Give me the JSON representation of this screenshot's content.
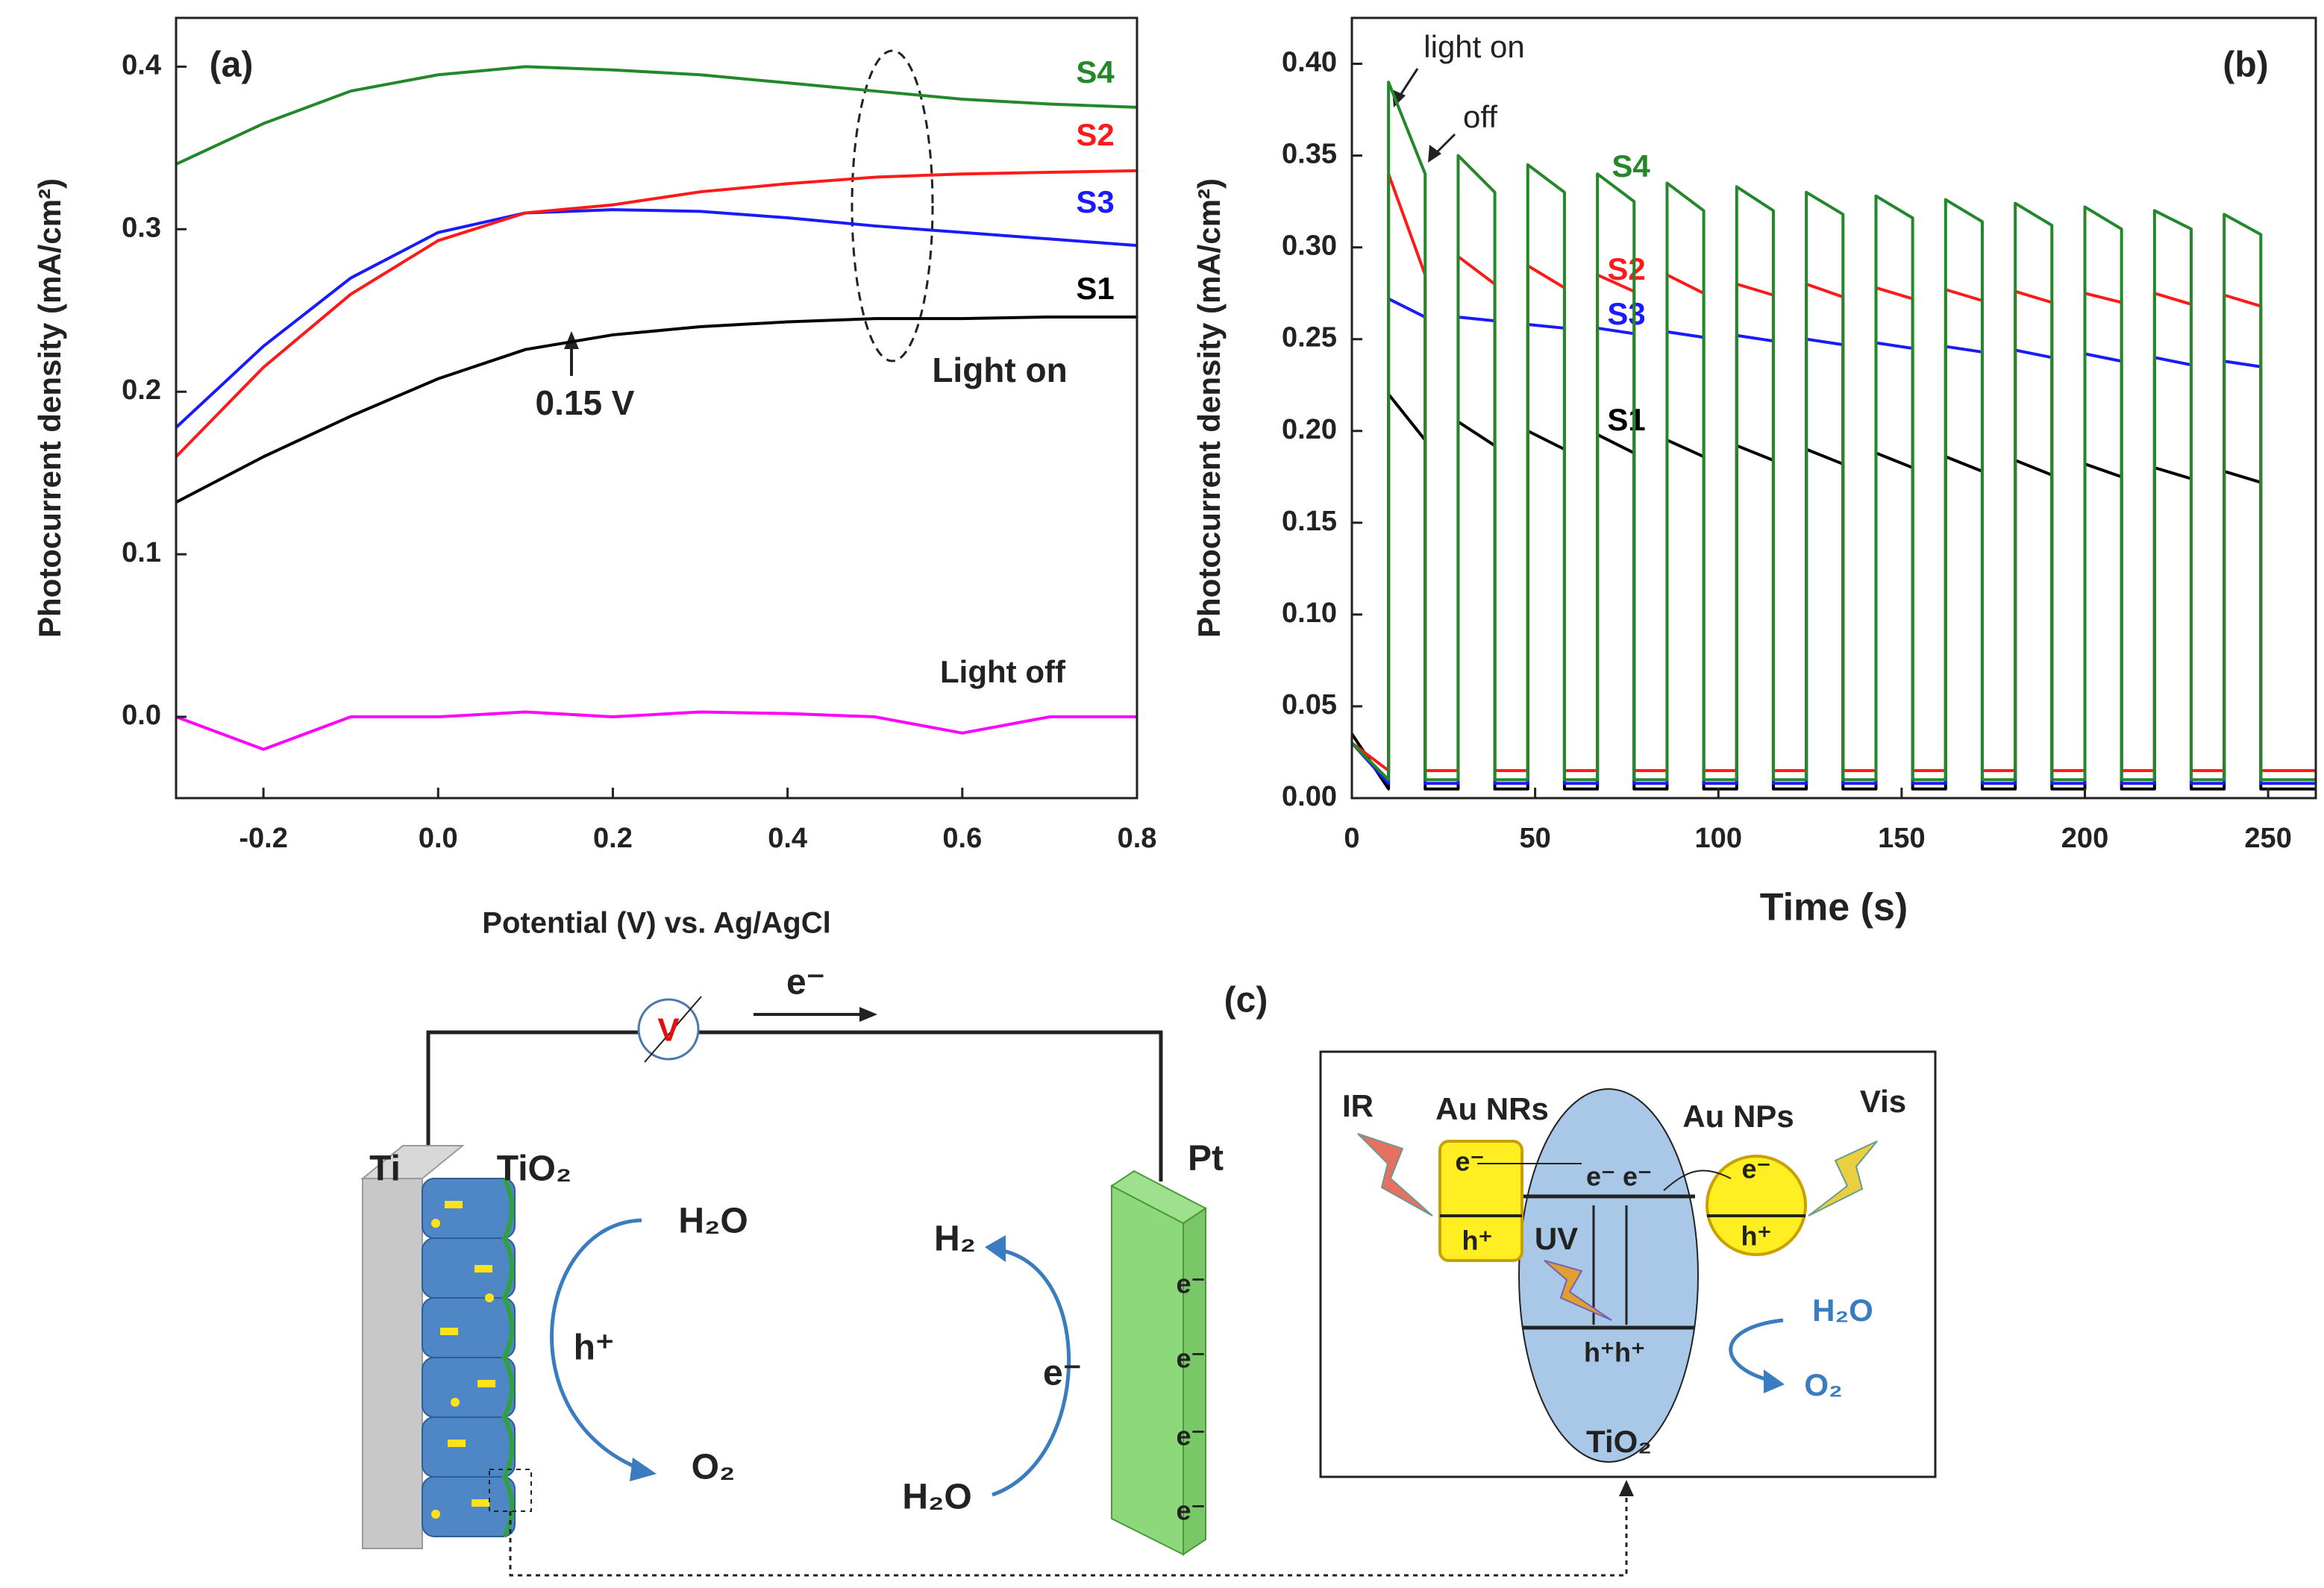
{
  "chart_data": [
    {
      "type": "line",
      "label": "(a)",
      "xlabel": "Potential (V) vs. Ag/AgCl",
      "ylabel": "Photocurrent density (mA/cm²)",
      "x": [
        -0.3,
        -0.2,
        -0.1,
        0,
        0.1,
        0.2,
        0.3,
        0.4,
        0.5,
        0.6,
        0.7,
        0.8
      ],
      "series": [
        {
          "name": "Light off",
          "color": "#ff00ff",
          "values": [
            0,
            -0.02,
            0,
            0,
            0.003,
            0,
            0.003,
            0.002,
            0,
            -0.01,
            0,
            0
          ]
        },
        {
          "name": "S1",
          "color": "#000000",
          "values": [
            0.132,
            0.16,
            0.185,
            0.208,
            0.226,
            0.235,
            0.24,
            0.243,
            0.245,
            0.245,
            0.246,
            0.246
          ]
        },
        {
          "name": "S3",
          "color": "#1a1aff",
          "values": [
            0.178,
            0.228,
            0.27,
            0.298,
            0.31,
            0.312,
            0.311,
            0.307,
            0.302,
            0.298,
            0.294,
            0.29
          ]
        },
        {
          "name": "S2",
          "color": "#ff1a1a",
          "values": [
            0.16,
            0.215,
            0.26,
            0.293,
            0.31,
            0.315,
            0.323,
            0.328,
            0.332,
            0.334,
            0.335,
            0.336
          ]
        },
        {
          "name": "S4",
          "color": "#23882a",
          "values": [
            0.34,
            0.365,
            0.385,
            0.395,
            0.4,
            0.398,
            0.395,
            0.39,
            0.385,
            0.38,
            0.377,
            0.375
          ]
        }
      ],
      "xlim": [
        -0.3,
        0.8
      ],
      "xticks": [
        -0.2,
        {
          "value": 0,
          "label": "0.0"
        },
        0.2,
        0.4,
        0.6,
        0.8
      ],
      "ylim": [
        -0.05,
        0.43
      ],
      "yticks": [
        {
          "value": 0,
          "label": "0.0"
        },
        0.1,
        0.2,
        0.3,
        0.4
      ],
      "annotations": [
        "0.15 V",
        "Light on"
      ]
    },
    {
      "type": "line",
      "label": "(b)",
      "xlabel": "Time (s)",
      "ylabel": "Photocurrent density (mA/cm²)",
      "x": [
        0,
        10,
        10,
        20,
        20,
        29,
        29,
        39,
        39,
        48,
        48,
        58,
        58,
        67,
        67,
        77,
        77,
        86,
        86,
        96,
        96,
        105,
        105,
        115,
        115,
        124,
        124,
        134,
        134,
        143,
        143,
        153,
        153,
        162,
        162,
        172,
        172,
        181,
        181,
        191,
        191,
        200,
        200,
        210,
        210,
        219,
        219,
        229,
        229,
        238,
        238,
        248,
        248,
        263
      ],
      "series": [
        {
          "name": "S1",
          "color": "#000000",
          "values": [
            0.035,
            0.005,
            0.22,
            0.195,
            0.005,
            0.005,
            0.205,
            0.192,
            0.005,
            0.005,
            0.2,
            0.19,
            0.005,
            0.005,
            0.198,
            0.188,
            0.005,
            0.005,
            0.195,
            0.186,
            0.005,
            0.005,
            0.192,
            0.184,
            0.005,
            0.005,
            0.19,
            0.182,
            0.005,
            0.005,
            0.188,
            0.18,
            0.005,
            0.005,
            0.186,
            0.178,
            0.005,
            0.005,
            0.184,
            0.176,
            0.005,
            0.005,
            0.182,
            0.175,
            0.005,
            0.005,
            0.18,
            0.174,
            0.005,
            0.005,
            0.178,
            0.172,
            0.005,
            0.005
          ]
        },
        {
          "name": "S3",
          "color": "#1a1aff",
          "values": [
            0.03,
            0.008,
            0.272,
            0.262,
            0.008,
            0.008,
            0.262,
            0.26,
            0.008,
            0.008,
            0.258,
            0.256,
            0.008,
            0.008,
            0.256,
            0.253,
            0.008,
            0.008,
            0.254,
            0.251,
            0.008,
            0.008,
            0.252,
            0.249,
            0.008,
            0.008,
            0.25,
            0.247,
            0.008,
            0.008,
            0.248,
            0.245,
            0.008,
            0.008,
            0.246,
            0.243,
            0.008,
            0.008,
            0.244,
            0.24,
            0.008,
            0.008,
            0.242,
            0.238,
            0.008,
            0.008,
            0.24,
            0.236,
            0.008,
            0.008,
            0.238,
            0.235,
            0.008,
            0.008
          ]
        },
        {
          "name": "S2",
          "color": "#ff1a1a",
          "values": [
            0.03,
            0.015,
            0.34,
            0.285,
            0.015,
            0.015,
            0.295,
            0.28,
            0.015,
            0.015,
            0.29,
            0.278,
            0.015,
            0.015,
            0.285,
            0.276,
            0.015,
            0.015,
            0.285,
            0.275,
            0.015,
            0.015,
            0.28,
            0.274,
            0.015,
            0.015,
            0.28,
            0.273,
            0.015,
            0.015,
            0.278,
            0.272,
            0.015,
            0.015,
            0.277,
            0.271,
            0.015,
            0.015,
            0.276,
            0.27,
            0.015,
            0.015,
            0.275,
            0.27,
            0.015,
            0.015,
            0.275,
            0.269,
            0.015,
            0.015,
            0.274,
            0.268,
            0.015,
            0.015
          ]
        },
        {
          "name": "S4",
          "color": "#23882a",
          "values": [
            0.03,
            0.01,
            0.39,
            0.34,
            0.01,
            0.01,
            0.35,
            0.33,
            0.01,
            0.01,
            0.345,
            0.33,
            0.01,
            0.01,
            0.34,
            0.325,
            0.01,
            0.01,
            0.335,
            0.32,
            0.01,
            0.01,
            0.333,
            0.32,
            0.01,
            0.01,
            0.33,
            0.318,
            0.01,
            0.01,
            0.328,
            0.316,
            0.01,
            0.01,
            0.326,
            0.314,
            0.01,
            0.01,
            0.324,
            0.312,
            0.01,
            0.01,
            0.322,
            0.31,
            0.01,
            0.01,
            0.32,
            0.31,
            0.01,
            0.01,
            0.318,
            0.307,
            0.01,
            0.01
          ]
        }
      ],
      "xlim": [
        0,
        263
      ],
      "xticks": [
        0,
        50,
        100,
        150,
        200,
        250
      ],
      "ylim": [
        0,
        0.425
      ],
      "yticks": [
        {
          "value": 0,
          "label": "0.00"
        },
        {
          "value": 0.05,
          "label": "0.05"
        },
        {
          "value": 0.1,
          "label": "0.10"
        },
        {
          "value": 0.15,
          "label": "0.15"
        },
        {
          "value": 0.2,
          "label": "0.20"
        },
        {
          "value": 0.25,
          "label": "0.25"
        },
        {
          "value": 0.3,
          "label": "0.30"
        },
        {
          "value": 0.35,
          "label": "0.35"
        },
        {
          "value": 0.4,
          "label": "0.40"
        }
      ],
      "annotations": [
        "light on",
        "off"
      ]
    }
  ],
  "diagram": {
    "label": "(c)",
    "voltmeter": "V",
    "electron_flow": "e⁻",
    "anode": {
      "ti": "Ti",
      "tio2": "TiO₂",
      "h2o": "H₂O",
      "hole": "h⁺",
      "o2": "O₂"
    },
    "cathode": {
      "pt": "Pt",
      "h2": "H₂",
      "electron": "e⁻",
      "h2o": "H₂O",
      "electrons": [
        "e⁻",
        "e⁻",
        "e⁻",
        "e⁻"
      ]
    },
    "inset": {
      "ir": "IR",
      "au_nrs": "Au NRs",
      "au_nps": "Au NPs",
      "vis": "Vis",
      "nr_e": "e⁻",
      "nr_h": "h⁺",
      "np_e": "e⁻",
      "np_h": "h⁺",
      "cb": "e⁻ e⁻",
      "uv": "UV",
      "vb": "h⁺h⁺",
      "h2o": "H₂O",
      "o2": "O₂",
      "tio2": "TiO₂"
    }
  }
}
